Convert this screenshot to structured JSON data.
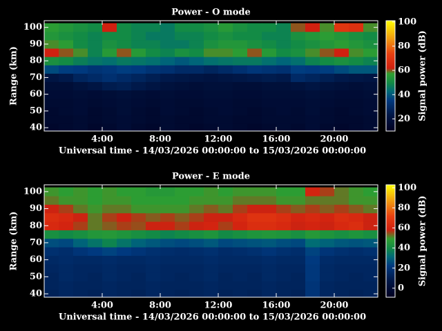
{
  "chart_data": [
    {
      "type": "heatmap",
      "title": "Power - O mode",
      "xlabel": "Universal time - 14/03/2026 00:00:00 to 15/03/2026 00:00:00",
      "ylabel": "Range (km)",
      "colorbar_label": "Signal power (dB)",
      "x": [
        0.5,
        1.5,
        2.5,
        3.5,
        4.5,
        5.5,
        6.5,
        7.5,
        8.5,
        9.5,
        10.5,
        11.5,
        12.5,
        13.5,
        14.5,
        15.5,
        16.5,
        17.5,
        18.5,
        19.5,
        20.5,
        21.5,
        22.5
      ],
      "y": [
        40,
        45,
        50,
        55,
        60,
        65,
        70,
        75,
        80,
        85,
        90,
        95,
        100
      ],
      "z": [
        [
          14,
          15,
          16,
          14,
          15,
          17,
          15,
          14,
          16,
          15,
          14,
          15,
          16,
          15,
          14,
          15,
          16,
          15,
          17,
          15,
          14,
          15,
          16
        ],
        [
          15,
          15,
          16,
          15,
          16,
          17,
          16,
          15,
          16,
          15,
          15,
          16,
          16,
          15,
          15,
          16,
          16,
          16,
          17,
          16,
          15,
          15,
          16
        ],
        [
          15,
          16,
          17,
          15,
          16,
          18,
          16,
          15,
          17,
          16,
          15,
          16,
          17,
          16,
          15,
          16,
          17,
          16,
          18,
          16,
          15,
          16,
          17
        ],
        [
          16,
          16,
          17,
          16,
          17,
          18,
          17,
          16,
          17,
          16,
          16,
          17,
          17,
          16,
          16,
          17,
          17,
          17,
          18,
          17,
          16,
          16,
          17
        ],
        [
          17,
          17,
          18,
          17,
          18,
          19,
          18,
          17,
          18,
          17,
          17,
          18,
          18,
          17,
          17,
          18,
          18,
          18,
          19,
          18,
          17,
          17,
          18
        ],
        [
          18,
          18,
          20,
          22,
          25,
          26,
          24,
          22,
          20,
          19,
          18,
          19,
          19,
          18,
          18,
          19,
          19,
          20,
          22,
          20,
          19,
          18,
          19
        ],
        [
          22,
          24,
          28,
          30,
          32,
          30,
          28,
          26,
          24,
          23,
          22,
          21,
          22,
          23,
          24,
          25,
          24,
          30,
          28,
          26,
          24,
          23,
          22
        ],
        [
          38,
          36,
          35,
          33,
          34,
          36,
          35,
          33,
          32,
          30,
          30,
          28,
          30,
          32,
          34,
          33,
          32,
          36,
          35,
          36,
          38,
          40,
          40
        ],
        [
          52,
          50,
          47,
          45,
          44,
          46,
          45,
          44,
          42,
          40,
          42,
          44,
          45,
          46,
          46,
          44,
          42,
          44,
          48,
          50,
          52,
          50,
          48
        ],
        [
          62,
          60,
          58,
          48,
          55,
          60,
          55,
          50,
          48,
          52,
          50,
          58,
          58,
          56,
          60,
          55,
          50,
          52,
          58,
          60,
          62,
          58,
          56
        ],
        [
          58,
          56,
          50,
          48,
          52,
          50,
          48,
          48,
          46,
          46,
          48,
          52,
          54,
          54,
          52,
          50,
          48,
          50,
          52,
          54,
          56,
          54,
          52
        ],
        [
          54,
          52,
          50,
          48,
          50,
          50,
          48,
          46,
          46,
          48,
          48,
          50,
          52,
          50,
          50,
          48,
          48,
          52,
          54,
          56,
          54,
          52,
          50
        ],
        [
          56,
          54,
          52,
          50,
          62,
          50,
          48,
          48,
          46,
          50,
          50,
          52,
          55,
          52,
          50,
          50,
          48,
          60,
          62,
          58,
          70,
          68,
          58
        ]
      ],
      "xlim": [
        0,
        23
      ],
      "ylim": [
        38,
        104
      ],
      "xticks": [
        {
          "value": 4,
          "label": "4:00"
        },
        {
          "value": 8,
          "label": "8:00"
        },
        {
          "value": 12,
          "label": "12:00"
        },
        {
          "value": 16,
          "label": "16:00"
        },
        {
          "value": 20,
          "label": "20:00"
        }
      ],
      "yticks": [
        40,
        50,
        60,
        70,
        80,
        90,
        100
      ],
      "clim": [
        10,
        101
      ],
      "cticks": [
        20,
        40,
        60,
        80,
        100
      ],
      "colorscale": [
        [
          0,
          "#000020"
        ],
        [
          0.15,
          "#001848"
        ],
        [
          0.28,
          "#003a80"
        ],
        [
          0.36,
          "#006a78"
        ],
        [
          0.43,
          "#108848"
        ],
        [
          0.52,
          "#30a030"
        ],
        [
          0.57,
          "#d02010"
        ],
        [
          0.7,
          "#e84010"
        ],
        [
          0.82,
          "#f09010"
        ],
        [
          1,
          "#ffff00"
        ]
      ]
    },
    {
      "type": "heatmap",
      "title": "Power - E mode",
      "xlabel": "Universal time - 14/03/2026 00:00:00 to 15/03/2026 00:00:00",
      "ylabel": "Range (km)",
      "colorbar_label": "Signal power (dB)",
      "x": [
        0.5,
        1.5,
        2.5,
        3.5,
        4.5,
        5.5,
        6.5,
        7.5,
        8.5,
        9.5,
        10.5,
        11.5,
        12.5,
        13.5,
        14.5,
        15.5,
        16.5,
        17.5,
        18.5,
        19.5,
        20.5,
        21.5,
        22.5
      ],
      "y": [
        40,
        45,
        50,
        55,
        60,
        65,
        70,
        75,
        80,
        85,
        90,
        95,
        100
      ],
      "z": [
        [
          12,
          14,
          13,
          12,
          14,
          13,
          12,
          14,
          13,
          12,
          13,
          14,
          12,
          13,
          12,
          14,
          13,
          12,
          20,
          14,
          13,
          12,
          13
        ],
        [
          13,
          14,
          13,
          13,
          14,
          13,
          13,
          14,
          13,
          13,
          13,
          14,
          13,
          13,
          13,
          14,
          13,
          13,
          20,
          14,
          13,
          13,
          13
        ],
        [
          13,
          15,
          14,
          13,
          15,
          14,
          13,
          15,
          14,
          13,
          14,
          15,
          13,
          14,
          13,
          15,
          14,
          13,
          21,
          15,
          14,
          13,
          14
        ],
        [
          14,
          15,
          14,
          14,
          15,
          14,
          14,
          15,
          14,
          14,
          14,
          15,
          14,
          14,
          14,
          15,
          14,
          14,
          21,
          15,
          14,
          14,
          14
        ],
        [
          15,
          16,
          15,
          15,
          16,
          15,
          15,
          16,
          15,
          15,
          15,
          16,
          15,
          15,
          15,
          16,
          15,
          15,
          22,
          16,
          15,
          15,
          15
        ],
        [
          18,
          17,
          20,
          22,
          24,
          22,
          20,
          18,
          17,
          16,
          17,
          18,
          16,
          17,
          18,
          20,
          18,
          17,
          24,
          20,
          18,
          17,
          18
        ],
        [
          26,
          25,
          30,
          34,
          38,
          34,
          30,
          28,
          26,
          25,
          26,
          28,
          25,
          26,
          27,
          28,
          26,
          25,
          32,
          30,
          28,
          27,
          28
        ],
        [
          42,
          40,
          42,
          45,
          46,
          44,
          42,
          40,
          38,
          40,
          42,
          44,
          40,
          42,
          44,
          45,
          44,
          42,
          46,
          44,
          42,
          44,
          42
        ],
        [
          62,
          60,
          56,
          52,
          54,
          56,
          55,
          58,
          58,
          56,
          58,
          60,
          56,
          60,
          64,
          64,
          62,
          58,
          60,
          58,
          62,
          64,
          58
        ],
        [
          64,
          62,
          58,
          52,
          56,
          58,
          56,
          54,
          56,
          54,
          56,
          58,
          58,
          62,
          66,
          66,
          64,
          60,
          62,
          60,
          64,
          62,
          58
        ],
        [
          58,
          56,
          52,
          50,
          52,
          52,
          50,
          50,
          50,
          50,
          52,
          54,
          52,
          56,
          58,
          58,
          56,
          54,
          56,
          54,
          56,
          54,
          52
        ],
        [
          52,
          50,
          50,
          48,
          50,
          50,
          48,
          48,
          48,
          48,
          50,
          50,
          50,
          52,
          52,
          52,
          50,
          50,
          52,
          52,
          52,
          50,
          50
        ],
        [
          50,
          48,
          50,
          48,
          50,
          48,
          48,
          46,
          46,
          48,
          48,
          50,
          48,
          50,
          50,
          50,
          48,
          48,
          60,
          56,
          52,
          50,
          48
        ]
      ],
      "xlim": [
        0,
        23
      ],
      "ylim": [
        38,
        104
      ],
      "xticks": [
        {
          "value": 4,
          "label": "4:00"
        },
        {
          "value": 8,
          "label": "8:00"
        },
        {
          "value": 12,
          "label": "12:00"
        },
        {
          "value": 16,
          "label": "16:00"
        },
        {
          "value": 20,
          "label": "20:00"
        }
      ],
      "yticks": [
        40,
        50,
        60,
        70,
        80,
        90,
        100
      ],
      "clim": [
        -9,
        103
      ],
      "cticks": [
        0,
        20,
        40,
        60,
        80,
        100
      ],
      "colorscale": [
        [
          0,
          "#000020"
        ],
        [
          0.15,
          "#001848"
        ],
        [
          0.28,
          "#003a80"
        ],
        [
          0.36,
          "#006a78"
        ],
        [
          0.43,
          "#108848"
        ],
        [
          0.52,
          "#30a030"
        ],
        [
          0.6,
          "#d02010"
        ],
        [
          0.72,
          "#e84010"
        ],
        [
          0.84,
          "#f09010"
        ],
        [
          1,
          "#ffff00"
        ]
      ]
    }
  ]
}
